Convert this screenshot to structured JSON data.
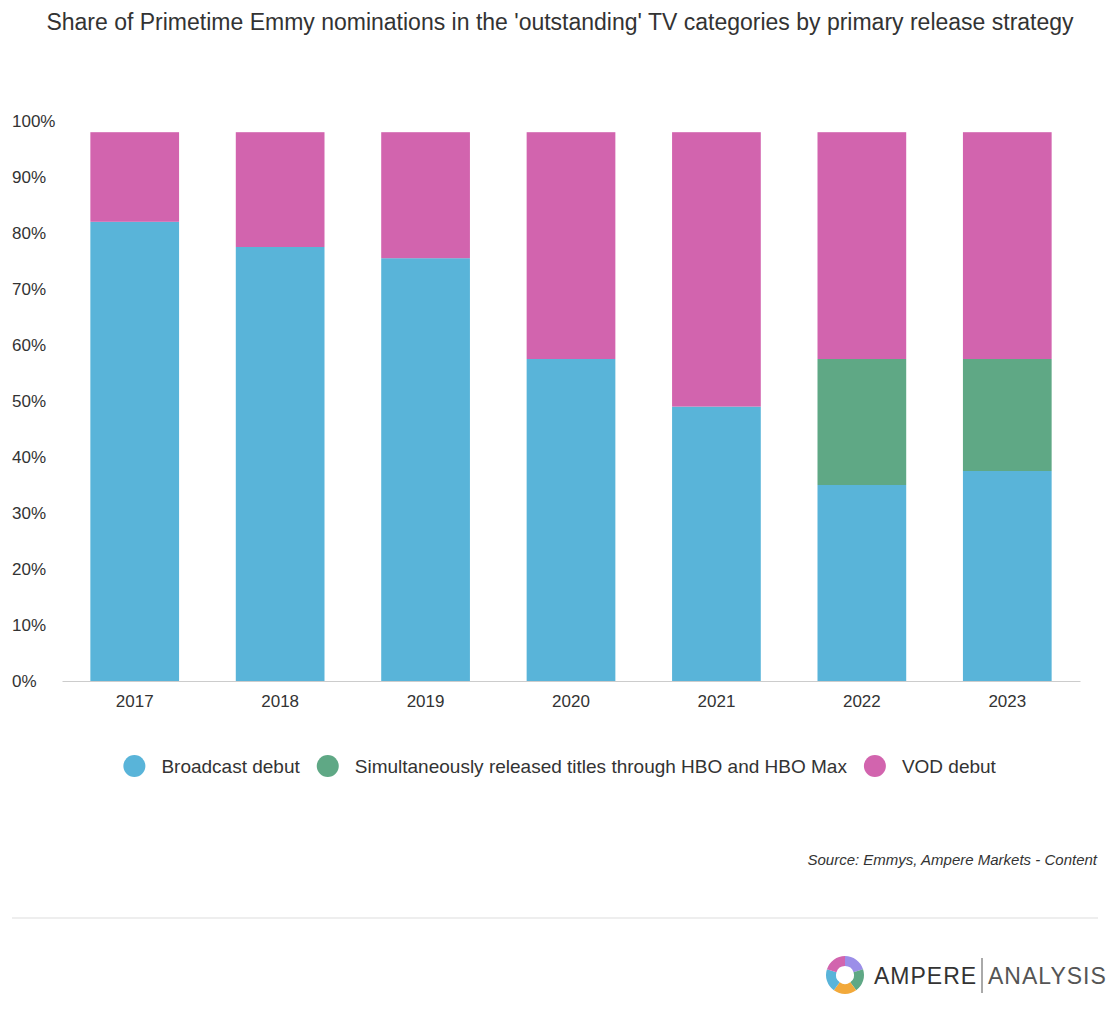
{
  "chart_data": {
    "type": "bar",
    "stacked": true,
    "title": "Share of Primetime Emmy nominations in the 'outstanding' TV categories by primary release strategy",
    "categories": [
      "2017",
      "2018",
      "2019",
      "2020",
      "2021",
      "2022",
      "2023"
    ],
    "series": [
      {
        "name": "Broadcast debut",
        "color": "#59b4d9",
        "values": [
          82,
          77.5,
          75.5,
          57.5,
          49,
          35,
          37.5
        ]
      },
      {
        "name": "Simultaneously released titles through HBO and HBO Max",
        "color": "#5fa885",
        "values": [
          null,
          null,
          null,
          null,
          null,
          22.5,
          20
        ]
      },
      {
        "name": "VOD debut",
        "color": "#d264ae",
        "values": [
          16,
          20.5,
          22.5,
          40.5,
          49,
          40.5,
          40.5
        ]
      }
    ],
    "ylim": [
      0,
      100
    ],
    "yticks": [
      {
        "value": 0,
        "label": "0%"
      },
      {
        "value": 10,
        "label": "10%"
      },
      {
        "value": 20,
        "label": "20%"
      },
      {
        "value": 30,
        "label": "30%"
      },
      {
        "value": 40,
        "label": "40%"
      },
      {
        "value": 50,
        "label": "50%"
      },
      {
        "value": 60,
        "label": "60%"
      },
      {
        "value": 70,
        "label": "70%"
      },
      {
        "value": 80,
        "label": "80%"
      },
      {
        "value": 90,
        "label": "90%"
      },
      {
        "value": 100,
        "label": "100%"
      }
    ],
    "grid": false,
    "legend": "bottom",
    "source": "Source: Emmys, Ampere Markets - Content",
    "logo_text": [
      "AMPERE",
      "ANALYSIS"
    ]
  }
}
